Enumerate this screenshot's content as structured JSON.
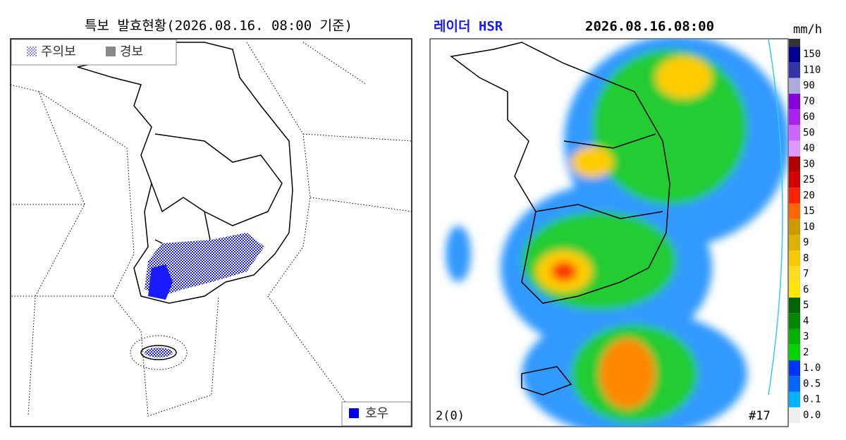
{
  "warning_map": {
    "title": "특보 발효현황(2026.08.16. 08:00 기준)",
    "legend": {
      "advisory": "주의보",
      "warning": "경보"
    },
    "type_legend": "호우"
  },
  "radar": {
    "title": "레이더 HSR",
    "time": "2026.08.16.08:00",
    "unit": "mm/h",
    "top_color": "#333333",
    "scale": [
      {
        "label": "150",
        "color": "#000090"
      },
      {
        "label": "110",
        "color": "#3333aa"
      },
      {
        "label": "90",
        "color": "#aaaadd"
      },
      {
        "label": "70",
        "color": "#8800dd"
      },
      {
        "label": "60",
        "color": "#aa22ee"
      },
      {
        "label": "50",
        "color": "#cc66ff"
      },
      {
        "label": "40",
        "color": "#dd99ff"
      },
      {
        "label": "30",
        "color": "#b30000"
      },
      {
        "label": "25",
        "color": "#d20000"
      },
      {
        "label": "20",
        "color": "#ff2200"
      },
      {
        "label": "15",
        "color": "#ff6600"
      },
      {
        "label": "10",
        "color": "#cc9900"
      },
      {
        "label": "9",
        "color": "#e0b000"
      },
      {
        "label": "8",
        "color": "#f5c800"
      },
      {
        "label": "7",
        "color": "#ffdc1f"
      },
      {
        "label": "6",
        "color": "#ffe600"
      },
      {
        "label": "5",
        "color": "#006600"
      },
      {
        "label": "4",
        "color": "#008800"
      },
      {
        "label": "3",
        "color": "#00b300"
      },
      {
        "label": "2",
        "color": "#00d500"
      },
      {
        "label": "1.0",
        "color": "#0033ff"
      },
      {
        "label": "0.5",
        "color": "#0066ff"
      },
      {
        "label": "0.1",
        "color": "#00b3ff"
      },
      {
        "label": "0.0",
        "color": "#eeeeee"
      }
    ],
    "site_info": "2(0)",
    "frame": "#17"
  }
}
